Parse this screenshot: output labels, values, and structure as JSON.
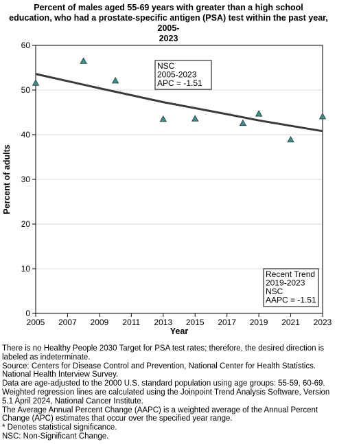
{
  "chart_data": {
    "type": "scatter",
    "title_lines": [
      "Percent of males aged 55-69 years with greater than a high school",
      "education, who had a prostate-specific antigen (PSA) test within the past year, 2005-",
      "2023"
    ],
    "xlabel": "Year",
    "ylabel": "Percent of adults",
    "xlim": [
      2005,
      2023
    ],
    "ylim": [
      0,
      60
    ],
    "x_ticks": [
      2005,
      2007,
      2009,
      2011,
      2013,
      2015,
      2017,
      2019,
      2021,
      2023
    ],
    "y_ticks": [
      0,
      10,
      20,
      30,
      40,
      50,
      60
    ],
    "grid": true,
    "points": [
      {
        "x": 2005,
        "y": 51.6
      },
      {
        "x": 2008,
        "y": 56.5
      },
      {
        "x": 2010,
        "y": 52.1
      },
      {
        "x": 2013,
        "y": 43.5
      },
      {
        "x": 2015,
        "y": 43.6
      },
      {
        "x": 2018,
        "y": 42.6
      },
      {
        "x": 2019,
        "y": 44.7
      },
      {
        "x": 2021,
        "y": 38.9
      },
      {
        "x": 2023,
        "y": 44.1
      }
    ],
    "trend_line": [
      {
        "x": 2005,
        "y": 53.6
      },
      {
        "x": 2009,
        "y": 50.4
      },
      {
        "x": 2013,
        "y": 47.3
      },
      {
        "x": 2017,
        "y": 44.6
      },
      {
        "x": 2019,
        "y": 43.2
      },
      {
        "x": 2023,
        "y": 40.8
      }
    ],
    "marker_color": "#3f8f8a",
    "line_color": "#3a3a3a",
    "annotations": [
      {
        "name": "nsc-annotation",
        "lines": [
          "NSC",
          "2005-2023",
          "APC = -1.51"
        ]
      },
      {
        "name": "recent-trend-annotation",
        "lines": [
          "Recent Trend",
          "2019-2023",
          "NSC",
          "AAPC = -1.51"
        ]
      }
    ]
  },
  "footnotes": [
    "There is no Healthy People 2030 Target for PSA test rates; therefore, the desired direction is labeled as indeterminate.",
    "Source: Centers for Disease Control and Prevention, National Center for Health Statistics. National Health Interview Survey.",
    "Data are age-adjusted to the 2000 U.S. standard population using age groups: 55-59, 60-69.",
    "Weighted regression lines are calculated using the Joinpoint Trend Analysis Software, Version 5.1 April 2024, National Cancer Institute.",
    "The Average Annual Percent Change (AAPC) is a weighted average of the Annual Percent Change (APC) estimates that occur over the specified year range.",
    "* Denotes statistical significance.",
    "NSC: Non-Significant Change."
  ]
}
